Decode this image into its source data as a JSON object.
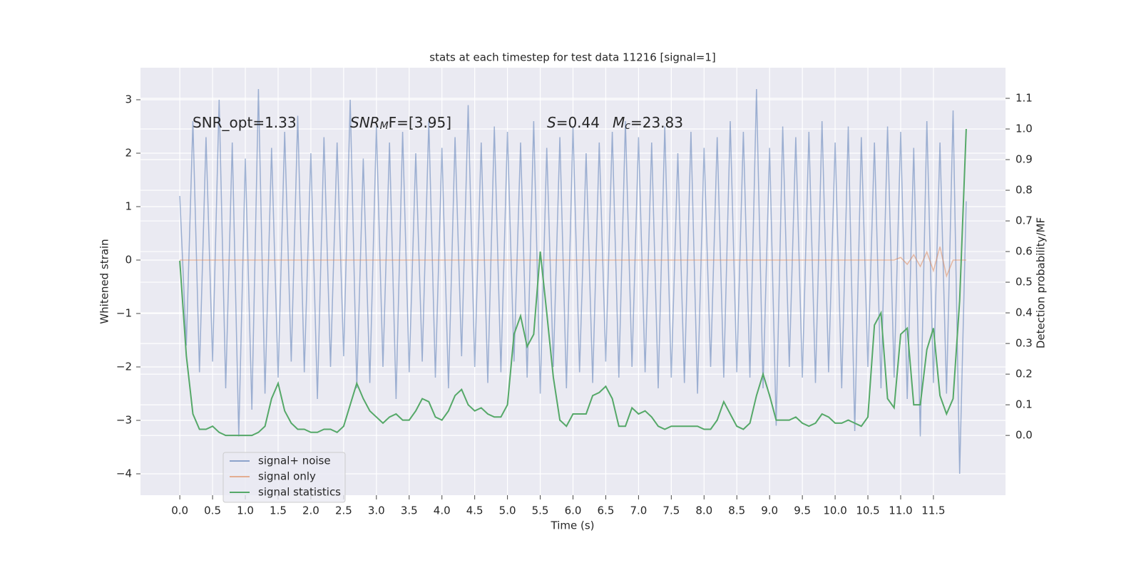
{
  "chart_data": {
    "type": "line",
    "title": "stats at each timestep for test data 11216 [signal=1]",
    "xlabel": "Time (s)",
    "ylabel": "Whitened strain",
    "y2label": "Detection probability/MF",
    "x": [
      0,
      0.1,
      0.2,
      0.3,
      0.4,
      0.5,
      0.6,
      0.7,
      0.8,
      0.9,
      1.0,
      1.1,
      1.2,
      1.3,
      1.4,
      1.5,
      1.6,
      1.7,
      1.8,
      1.9,
      2.0,
      2.1,
      2.2,
      2.3,
      2.4,
      2.5,
      2.6,
      2.7,
      2.8,
      2.9,
      3.0,
      3.1,
      3.2,
      3.3,
      3.4,
      3.5,
      3.6,
      3.7,
      3.8,
      3.9,
      4.0,
      4.1,
      4.2,
      4.3,
      4.4,
      4.5,
      4.6,
      4.7,
      4.8,
      4.9,
      5.0,
      5.1,
      5.2,
      5.3,
      5.4,
      5.5,
      5.6,
      5.7,
      5.8,
      5.9,
      6.0,
      6.1,
      6.2,
      6.3,
      6.4,
      6.5,
      6.6,
      6.7,
      6.8,
      6.9,
      7.0,
      7.1,
      7.2,
      7.3,
      7.4,
      7.5,
      7.6,
      7.7,
      7.8,
      7.9,
      8.0,
      8.1,
      8.2,
      8.3,
      8.4,
      8.5,
      8.6,
      8.7,
      8.8,
      8.9,
      9.0,
      9.1,
      9.2,
      9.3,
      9.4,
      9.5,
      9.6,
      9.7,
      9.8,
      9.9,
      10.0,
      10.1,
      10.2,
      10.3,
      10.4,
      10.5,
      10.6,
      10.7,
      10.8,
      10.9,
      11.0,
      11.1,
      11.2,
      11.3,
      11.4,
      11.5,
      11.6,
      11.7,
      11.8,
      11.9,
      12.0
    ],
    "series": [
      {
        "name": "signal+ noise",
        "color": "#4c72b0",
        "values": [
          1.2,
          -1.6,
          2.6,
          -2.1,
          2.3,
          -1.9,
          3.0,
          -2.4,
          2.2,
          -3.3,
          1.9,
          -2.8,
          3.2,
          -2.5,
          2.1,
          -2.2,
          2.4,
          -1.9,
          2.7,
          -2.1,
          2.0,
          -2.6,
          2.3,
          -2.0,
          2.2,
          -1.8,
          3.0,
          -2.4,
          1.9,
          -2.3,
          2.5,
          -2.0,
          2.2,
          -2.6,
          2.4,
          -2.1,
          2.0,
          -1.9,
          2.6,
          -2.2,
          2.1,
          -2.4,
          2.3,
          -1.8,
          2.9,
          -2.0,
          2.2,
          -2.3,
          2.5,
          -2.1,
          2.4,
          -1.9,
          2.2,
          -2.2,
          2.6,
          -2.5,
          2.1,
          -2.0,
          2.3,
          -2.4,
          2.5,
          -2.1,
          2.0,
          -2.3,
          2.2,
          -1.9,
          2.4,
          -2.2,
          2.6,
          -2.0,
          2.3,
          -2.1,
          2.2,
          -2.4,
          2.5,
          -2.2,
          2.0,
          -2.3,
          2.4,
          -2.5,
          2.1,
          -2.0,
          2.3,
          -2.2,
          2.6,
          -2.1,
          2.4,
          -2.2,
          3.2,
          -2.4,
          2.1,
          -3.1,
          2.5,
          -2.0,
          2.3,
          -2.2,
          2.4,
          -2.3,
          2.6,
          -2.1,
          2.2,
          -2.4,
          2.5,
          -3.2,
          2.3,
          -2.0,
          2.2,
          -2.4,
          2.5,
          -2.2,
          2.4,
          -2.6,
          2.1,
          -3.3,
          2.6,
          -2.3,
          2.2,
          -2.5,
          2.8,
          -4.0,
          1.1
        ]
      },
      {
        "name": "signal only",
        "color": "#dd8452",
        "values": [
          0,
          0,
          0,
          0,
          0,
          0,
          0,
          0,
          0,
          0,
          0,
          0,
          0,
          0,
          0,
          0,
          0,
          0,
          0,
          0,
          0,
          0,
          0,
          0,
          0,
          0,
          0,
          0,
          0,
          0,
          0,
          0,
          0,
          0,
          0,
          0,
          0,
          0,
          0,
          0,
          0,
          0,
          0,
          0,
          0,
          0,
          0,
          0,
          0,
          0,
          0,
          0,
          0,
          0,
          0,
          0,
          0,
          0,
          0,
          0,
          0,
          0,
          0,
          0,
          0,
          0,
          0,
          0,
          0,
          0,
          0,
          0,
          0,
          0,
          0,
          0,
          0,
          0,
          0,
          0,
          0,
          0,
          0,
          0,
          0,
          0,
          0,
          0,
          0,
          0,
          0,
          0,
          0,
          0,
          0,
          0,
          0,
          0,
          0,
          0,
          0,
          0,
          0,
          0,
          0,
          0,
          0,
          0,
          0,
          0,
          0.05,
          -0.08,
          0.1,
          -0.12,
          0.15,
          -0.2,
          0.25,
          -0.3,
          0,
          0,
          0
        ]
      },
      {
        "name": "signal statistics",
        "color": "#55a868",
        "axis": "y2",
        "values": [
          0.57,
          0.26,
          0.07,
          0.02,
          0.02,
          0.03,
          0.01,
          0.0,
          0.0,
          0.0,
          0.0,
          0.0,
          0.01,
          0.03,
          0.12,
          0.17,
          0.08,
          0.04,
          0.02,
          0.02,
          0.01,
          0.01,
          0.02,
          0.02,
          0.01,
          0.03,
          0.1,
          0.17,
          0.12,
          0.08,
          0.06,
          0.04,
          0.06,
          0.07,
          0.05,
          0.05,
          0.08,
          0.12,
          0.11,
          0.06,
          0.05,
          0.08,
          0.13,
          0.15,
          0.1,
          0.08,
          0.09,
          0.07,
          0.06,
          0.06,
          0.1,
          0.33,
          0.39,
          0.29,
          0.33,
          0.6,
          0.4,
          0.19,
          0.05,
          0.03,
          0.07,
          0.07,
          0.07,
          0.13,
          0.14,
          0.16,
          0.12,
          0.03,
          0.03,
          0.09,
          0.07,
          0.08,
          0.06,
          0.03,
          0.02,
          0.03,
          0.03,
          0.03,
          0.03,
          0.03,
          0.02,
          0.02,
          0.05,
          0.11,
          0.07,
          0.03,
          0.02,
          0.04,
          0.13,
          0.2,
          0.13,
          0.05,
          0.05,
          0.05,
          0.06,
          0.04,
          0.03,
          0.04,
          0.07,
          0.06,
          0.04,
          0.04,
          0.05,
          0.04,
          0.03,
          0.06,
          0.36,
          0.4,
          0.12,
          0.09,
          0.33,
          0.35,
          0.1,
          0.1,
          0.28,
          0.35,
          0.13,
          0.07,
          0.12,
          0.44,
          1.0
        ]
      }
    ],
    "xlim": [
      -0.6,
      12.6
    ],
    "ylim": [
      -4.4,
      3.6
    ],
    "y2lim": [
      -0.195,
      1.2
    ],
    "xticks": [
      {
        "value": 0,
        "label": "0.0"
      },
      0.5,
      {
        "value": 1,
        "label": "1.0"
      },
      1.5,
      {
        "value": 2,
        "label": "2.0"
      },
      2.5,
      {
        "value": 3,
        "label": "3.0"
      },
      3.5,
      {
        "value": 4,
        "label": "4.0"
      },
      4.5,
      {
        "value": 5,
        "label": "5.0"
      },
      5.5,
      {
        "value": 6,
        "label": "6.0"
      },
      6.5,
      {
        "value": 7,
        "label": "7.0"
      },
      7.5,
      {
        "value": 8,
        "label": "8.0"
      },
      8.5,
      {
        "value": 9,
        "label": "9.0"
      },
      9.5,
      {
        "value": 10,
        "label": "10.0"
      },
      10.5,
      {
        "value": 11,
        "label": "11.0"
      },
      11.5
    ],
    "yticks": [
      {
        "value": -4,
        "label": "−4"
      },
      {
        "value": -3,
        "label": "−3"
      },
      {
        "value": -2,
        "label": "−2"
      },
      {
        "value": -1,
        "label": "−1"
      },
      0,
      1,
      2,
      3
    ],
    "y2ticks": [
      {
        "value": 0,
        "label": "0.0"
      },
      0.1,
      0.2,
      0.3,
      0.4,
      0.5,
      0.6,
      0.7,
      0.8,
      0.9,
      {
        "value": 1,
        "label": "1.0"
      },
      1.1
    ],
    "grid": true,
    "legend": "lower left",
    "annotations": [
      {
        "parts": [
          {
            "t": "SNR_opt=1.33"
          }
        ]
      },
      {
        "parts": [
          {
            "t": "SNR",
            "style": "italic"
          },
          {
            "t": "M",
            "style": "sub"
          },
          {
            "t": "F=[3.95]"
          }
        ]
      },
      {
        "parts": [
          {
            "t": "S",
            "style": "italic"
          },
          {
            "t": "=0.44"
          }
        ]
      },
      {
        "parts": [
          {
            "t": "M",
            "style": "italic"
          },
          {
            "t": "c",
            "style": "sub"
          },
          {
            "t": "=23.83"
          }
        ]
      }
    ]
  }
}
